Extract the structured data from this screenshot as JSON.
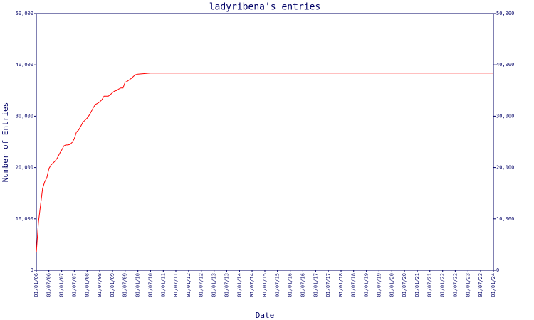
{
  "chart_data": {
    "type": "line",
    "title": "ladyribena's entries",
    "y_label": "Number of Entries",
    "x_label": "Date",
    "color": "#ff0000",
    "axis_color": "#000066",
    "x": [
      "2006-01-01",
      "2006-02-01",
      "2006-03-01",
      "2006-04-01",
      "2006-05-01",
      "2006-06-01",
      "2006-07-01",
      "2006-08-01",
      "2006-09-01",
      "2006-10-01",
      "2006-11-01",
      "2006-12-01",
      "2007-01-01",
      "2007-02-01",
      "2007-03-01",
      "2007-04-01",
      "2007-05-01",
      "2007-06-01",
      "2007-07-01",
      "2007-08-01",
      "2007-09-01",
      "2007-10-01",
      "2007-11-01",
      "2007-12-01",
      "2008-01-01",
      "2008-02-01",
      "2008-03-01",
      "2008-04-01",
      "2008-05-01",
      "2008-06-01",
      "2008-07-01",
      "2008-08-01",
      "2008-09-01",
      "2008-10-01",
      "2008-11-01",
      "2008-12-01",
      "2009-01-01",
      "2009-02-01",
      "2009-03-01",
      "2009-04-01",
      "2009-05-01",
      "2009-06-01",
      "2009-07-01",
      "2009-08-01",
      "2009-09-01",
      "2009-10-01",
      "2009-11-01",
      "2009-12-01",
      "2010-01-01",
      "2010-07-01",
      "2024-01-01"
    ],
    "values": [
      3460,
      9400,
      12500,
      15900,
      17200,
      18000,
      19800,
      20500,
      20900,
      21300,
      21900,
      22700,
      23400,
      24200,
      24400,
      24400,
      24500,
      24900,
      25600,
      26900,
      27300,
      28000,
      28800,
      29200,
      29600,
      30200,
      30900,
      31700,
      32300,
      32500,
      32800,
      33200,
      33900,
      33900,
      33900,
      34200,
      34600,
      34900,
      35000,
      35300,
      35500,
      35500,
      36600,
      36800,
      37100,
      37400,
      37800,
      38100,
      38200,
      38400,
      38400
    ],
    "xlim": [
      "2006-01-01",
      "2024-01-01"
    ],
    "xticks": [
      {
        "value": "2006-01-01",
        "label": "01/01/06"
      },
      {
        "value": "2006-07-01",
        "label": "01/07/06"
      },
      {
        "value": "2007-01-01",
        "label": "01/01/07"
      },
      {
        "value": "2007-07-01",
        "label": "01/07/07"
      },
      {
        "value": "2008-01-01",
        "label": "01/01/08"
      },
      {
        "value": "2008-07-01",
        "label": "01/07/08"
      },
      {
        "value": "2009-01-01",
        "label": "01/01/09"
      },
      {
        "value": "2009-07-01",
        "label": "01/07/09"
      },
      {
        "value": "2010-01-01",
        "label": "01/01/10"
      },
      {
        "value": "2010-07-01",
        "label": "01/07/10"
      },
      {
        "value": "2011-01-01",
        "label": "01/01/11"
      },
      {
        "value": "2011-07-01",
        "label": "01/07/11"
      },
      {
        "value": "2012-01-01",
        "label": "01/01/12"
      },
      {
        "value": "2012-07-01",
        "label": "01/07/12"
      },
      {
        "value": "2013-01-01",
        "label": "01/01/13"
      },
      {
        "value": "2013-07-01",
        "label": "01/07/13"
      },
      {
        "value": "2014-01-01",
        "label": "01/01/14"
      },
      {
        "value": "2014-07-01",
        "label": "01/07/14"
      },
      {
        "value": "2015-01-01",
        "label": "01/01/15"
      },
      {
        "value": "2015-07-01",
        "label": "01/07/15"
      },
      {
        "value": "2016-01-01",
        "label": "01/01/16"
      },
      {
        "value": "2016-07-01",
        "label": "01/07/16"
      },
      {
        "value": "2017-01-01",
        "label": "01/01/17"
      },
      {
        "value": "2017-07-01",
        "label": "01/07/17"
      },
      {
        "value": "2018-01-01",
        "label": "01/01/18"
      },
      {
        "value": "2018-07-01",
        "label": "01/07/18"
      },
      {
        "value": "2019-01-01",
        "label": "01/01/19"
      },
      {
        "value": "2019-07-01",
        "label": "01/07/19"
      },
      {
        "value": "2020-01-01",
        "label": "01/01/20"
      },
      {
        "value": "2020-07-01",
        "label": "01/07/20"
      },
      {
        "value": "2021-01-01",
        "label": "01/01/21"
      },
      {
        "value": "2021-07-01",
        "label": "01/07/21"
      },
      {
        "value": "2022-01-01",
        "label": "01/01/22"
      },
      {
        "value": "2022-07-01",
        "label": "01/07/22"
      },
      {
        "value": "2023-01-01",
        "label": "01/01/23"
      },
      {
        "value": "2023-07-01",
        "label": "01/07/23"
      },
      {
        "value": "2024-01-01",
        "label": "01/01/24"
      }
    ],
    "ylim": [
      0,
      50000
    ],
    "yticks": [
      0,
      {
        "value": 10000,
        "label": "10,000"
      },
      {
        "value": 20000,
        "label": "20,000"
      },
      {
        "value": 30000,
        "label": "30,000"
      },
      {
        "value": 40000,
        "label": "40,000"
      },
      {
        "value": 50000,
        "label": "50,000"
      }
    ],
    "y2lim": [
      0,
      50000
    ],
    "y2ticks": [
      0,
      {
        "value": 10000,
        "label": "10,000"
      },
      {
        "value": 20000,
        "label": "20,000"
      },
      {
        "value": 30000,
        "label": "30,000"
      },
      {
        "value": 40000,
        "label": "40,000"
      },
      {
        "value": 50000,
        "label": "50,000"
      }
    ]
  }
}
